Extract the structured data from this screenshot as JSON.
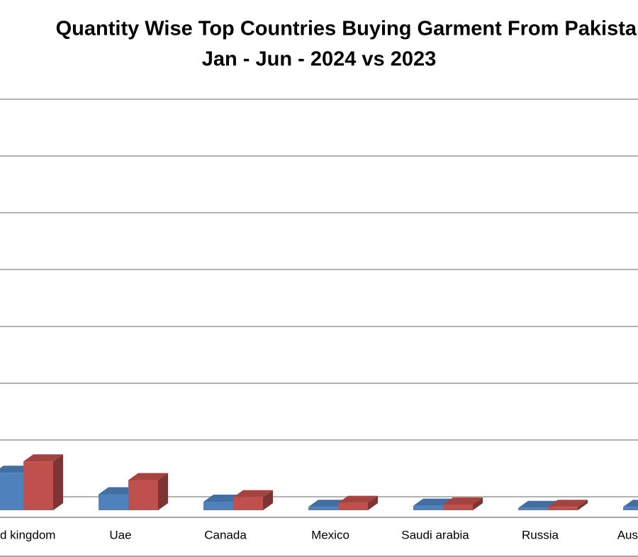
{
  "chart_data": {
    "type": "bar3d",
    "title": "Quantity Wise Top Countries Buying Garment From Pakista",
    "subtitle": "Jan - Jun - 2024 vs 2023",
    "categories": [
      "d kingdom",
      "Uae",
      "Canada",
      "Mexico",
      "Saudi arabia",
      "Russia",
      "Aus"
    ],
    "series": [
      {
        "color": "#4f81bd",
        "values": [
          0.66,
          0.28,
          0.15,
          0.06,
          0.08,
          0.04,
          0.06
        ]
      },
      {
        "color": "#c0504d",
        "values": [
          0.86,
          0.53,
          0.23,
          0.13,
          0.1,
          0.06,
          null
        ]
      }
    ],
    "ylim": [
      0,
      7.25
    ],
    "yticks": [
      0,
      1,
      2,
      3,
      4,
      5,
      6,
      7
    ],
    "grid": true
  }
}
